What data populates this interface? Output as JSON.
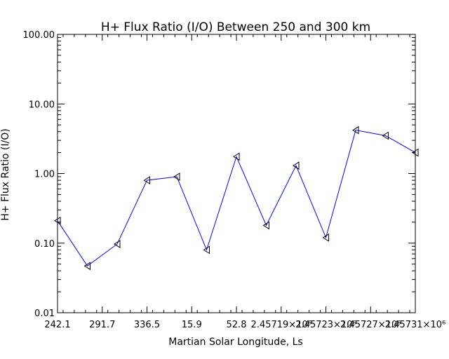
{
  "chart_data": {
    "type": "line",
    "title": "H+ Flux Ratio (I/O) Between 250 and 300 km",
    "xlabel": "Martian Solar Longitude, Ls",
    "ylabel": "H+ Flux Ratio (I/O)",
    "y_scale": "log",
    "ylim": [
      0.01,
      100
    ],
    "grid": false,
    "y_tick_labels": [
      "0.01",
      "0.10",
      "1.00",
      "10.00",
      "100.00"
    ],
    "x_tick_labels": [
      "242.1",
      "291.7",
      "336.5",
      "15.9",
      "52.8",
      "2.45719×10⁶",
      "2.45723×10⁶",
      "2.45727×10⁶",
      "2.45731×10⁶"
    ],
    "series": [
      {
        "values": [
          0.21,
          0.047,
          0.097,
          0.8,
          0.9,
          0.08,
          1.75,
          0.18,
          1.3,
          0.12,
          4.2,
          3.5,
          2.0
        ]
      }
    ],
    "line_color": "#0000ff",
    "marker_color": "#000000",
    "marker": "left-triangle"
  }
}
